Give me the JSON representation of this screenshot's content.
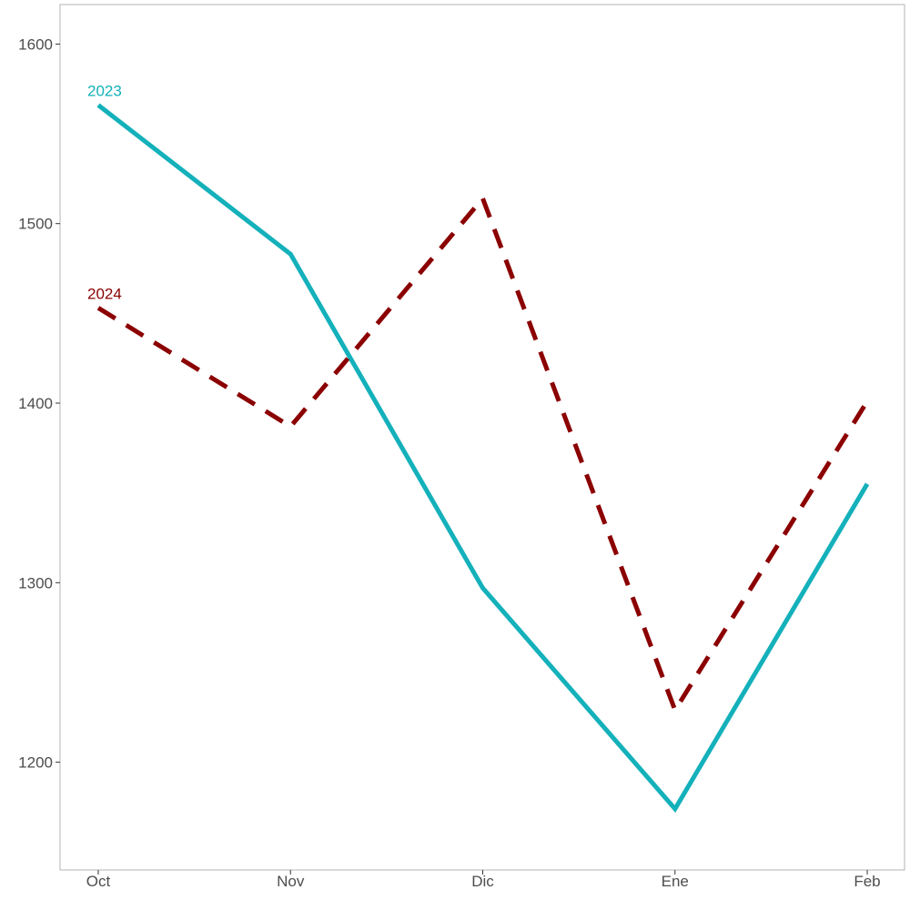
{
  "chart_data": {
    "type": "line",
    "categories": [
      "Oct",
      "Nov",
      "Dic",
      "Ene",
      "Feb"
    ],
    "ylim": [
      1140,
      1622
    ],
    "yticks": [
      1200,
      1300,
      1400,
      1500,
      1600
    ],
    "grid": false,
    "legend": "direct labels at start of each line",
    "series": [
      {
        "name": "2023",
        "values": [
          1566,
          1483,
          1297,
          1174,
          1355
        ],
        "color": "#14b1bb",
        "dash": "solid"
      },
      {
        "name": "2024",
        "values": [
          1453,
          1387,
          1514,
          1229,
          1401
        ],
        "color": "#8b0000",
        "dash": "dashed"
      }
    ]
  }
}
